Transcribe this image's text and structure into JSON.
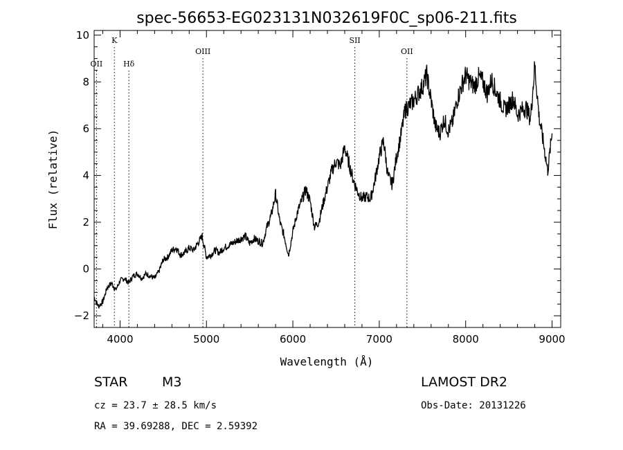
{
  "chart_data": {
    "type": "line",
    "title": "spec-56653-EG023131N032619F0C_sp06-211.fits",
    "xlabel": "Wavelength (Å)",
    "ylabel": "Flux (relative)",
    "xlim": [
      3700,
      9100
    ],
    "ylim": [
      -2.5,
      10.2
    ],
    "x_ticks": [
      4000,
      5000,
      6000,
      7000,
      8000,
      9000
    ],
    "y_ticks": [
      -2,
      0,
      2,
      4,
      6,
      8,
      10
    ],
    "grid": false,
    "line_color": "#000000",
    "spectral_lines": [
      {
        "name": "OII",
        "wavelength": 3727,
        "row": 2
      },
      {
        "name": "K",
        "wavelength": 3934,
        "row": 1
      },
      {
        "name": "Hδ",
        "wavelength": 4102,
        "row": 2
      },
      {
        "name": "OIII",
        "wavelength": 4959,
        "row": 3
      },
      {
        "name": "OII",
        "wavelength": 7320,
        "row": 3
      },
      {
        "name": "SII",
        "wavelength": 6717,
        "row": 1
      }
    ],
    "series": [
      {
        "x": [
          3700,
          3750,
          3800,
          3850,
          3900,
          3950,
          4000,
          4050,
          4100,
          4150,
          4200,
          4250,
          4300,
          4350,
          4400,
          4450,
          4500,
          4550,
          4600,
          4650,
          4700,
          4750,
          4800,
          4850,
          4900,
          4950,
          5000,
          5050,
          5100,
          5150,
          5200,
          5250,
          5300,
          5350,
          5400,
          5450,
          5500,
          5550,
          5600,
          5650,
          5700,
          5750,
          5800,
          5850,
          5900,
          5950,
          6000,
          6050,
          6100,
          6150,
          6200,
          6250,
          6300,
          6350,
          6400,
          6450,
          6500,
          6550,
          6600,
          6650,
          6700,
          6750,
          6800,
          6850,
          6900,
          6950,
          7000,
          7050,
          7100,
          7150,
          7200,
          7250,
          7300,
          7350,
          7400,
          7450,
          7500,
          7550,
          7600,
          7650,
          7700,
          7750,
          7800,
          7850,
          7900,
          7950,
          8000,
          8050,
          8100,
          8150,
          8200,
          8250,
          8300,
          8350,
          8400,
          8450,
          8500,
          8550,
          8600,
          8650,
          8700,
          8750,
          8800,
          8850,
          8900,
          8950,
          9000
        ],
        "y": [
          -1.2,
          -1.6,
          -1.4,
          -0.8,
          -0.6,
          -0.9,
          -0.5,
          -0.4,
          -0.6,
          -0.3,
          -0.2,
          -0.4,
          -0.2,
          -0.3,
          -0.4,
          -0.1,
          0.4,
          0.5,
          0.8,
          0.9,
          0.6,
          0.7,
          0.9,
          0.8,
          1.1,
          1.4,
          0.5,
          0.6,
          0.8,
          0.7,
          0.9,
          1.0,
          1.1,
          1.2,
          1.3,
          1.4,
          1.1,
          1.3,
          1.2,
          1.1,
          1.8,
          2.3,
          3.2,
          2.0,
          1.4,
          0.6,
          1.6,
          2.4,
          2.9,
          3.4,
          2.9,
          1.8,
          2.0,
          2.8,
          3.5,
          4.2,
          4.6,
          4.4,
          5.2,
          4.5,
          3.8,
          3.3,
          3.0,
          3.1,
          3.0,
          3.8,
          4.8,
          5.5,
          4.0,
          3.6,
          4.8,
          5.7,
          6.8,
          7.0,
          7.2,
          7.5,
          7.8,
          8.3,
          7.2,
          6.1,
          5.8,
          6.4,
          5.9,
          6.3,
          7.2,
          7.8,
          8.3,
          8.0,
          7.8,
          8.2,
          8.0,
          7.5,
          8.1,
          7.6,
          7.2,
          6.8,
          7.0,
          7.3,
          6.6,
          6.8,
          6.9,
          6.4,
          8.7,
          6.5,
          5.4,
          4.2,
          5.8
        ]
      }
    ]
  },
  "info": {
    "object_class": "STAR",
    "subclass": "M3",
    "survey": "LAMOST DR2",
    "cz": "cz = 23.7 ± 28.5 km/s",
    "obs_date": "Obs-Date: 20131226",
    "coords": "RA =  39.69288, DEC =   2.59392"
  }
}
